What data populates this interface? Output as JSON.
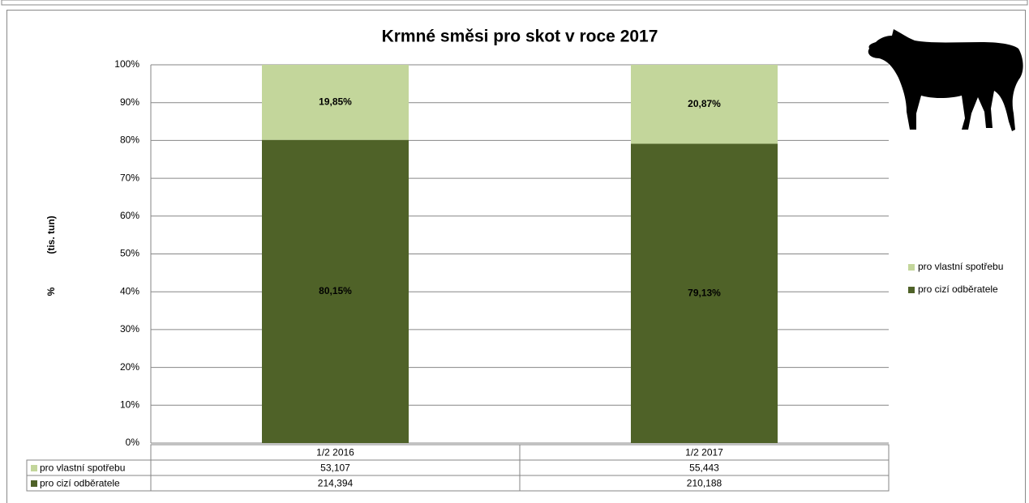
{
  "chart_data": {
    "type": "bar",
    "stacked": true,
    "title": "Krmné směsi pro skot v roce 2017",
    "ylabel_lines": [
      "%",
      "(tis. tun)"
    ],
    "categories": [
      "1/2 2016",
      "1/2 2017"
    ],
    "series": [
      {
        "name": "pro cizí odběratele",
        "color": "#4f6228",
        "label_color": "#ffffff",
        "values": [
          80.15,
          79.13
        ],
        "value_labels": [
          "80,15%",
          "79,13%"
        ],
        "table_values": [
          "214,394",
          "210,188"
        ]
      },
      {
        "name": "pro vlastní spotřebu",
        "color": "#c3d69b",
        "label_color": "#000000",
        "values": [
          19.85,
          20.87
        ],
        "value_labels": [
          "19,85%",
          "20,87%"
        ],
        "table_values": [
          "53,107",
          "55,443"
        ]
      }
    ],
    "ylim": [
      0,
      100
    ],
    "yticks": [
      {
        "value": 0,
        "label": "0%"
      },
      {
        "value": 10,
        "label": "10%"
      },
      {
        "value": 20,
        "label": "20%"
      },
      {
        "value": 30,
        "label": "30%"
      },
      {
        "value": 40,
        "label": "40%"
      },
      {
        "value": 50,
        "label": "50%"
      },
      {
        "value": 60,
        "label": "60%"
      },
      {
        "value": 70,
        "label": "70%"
      },
      {
        "value": 80,
        "label": "80%"
      },
      {
        "value": 90,
        "label": "90%"
      },
      {
        "value": 100,
        "label": "100%"
      }
    ],
    "grid": true,
    "legend": "right"
  }
}
